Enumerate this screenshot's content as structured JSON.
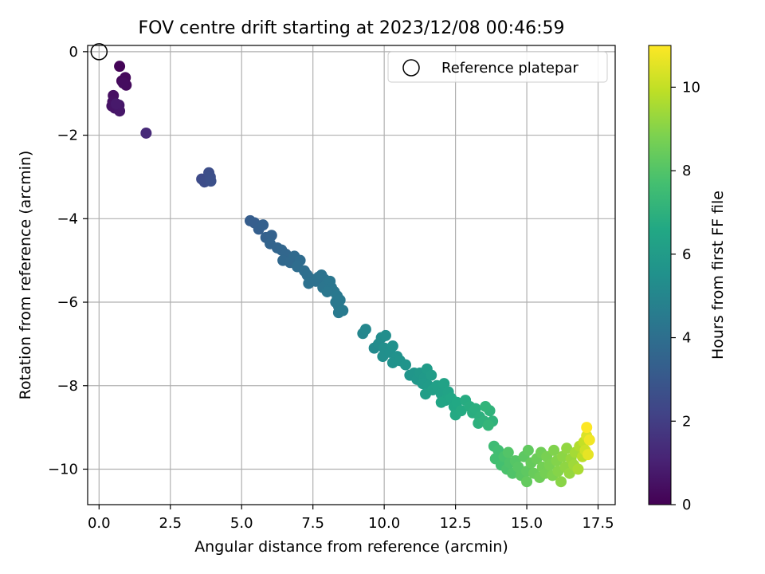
{
  "chart_data": {
    "type": "scatter",
    "title": "FOV centre drift starting at 2023/12/08 00:46:59",
    "xlabel": "Angular distance from reference (arcmin)",
    "ylabel": "Rotation from reference (arcmin)",
    "xlim": [
      -0.4,
      18.1
    ],
    "ylim": [
      -10.85,
      0.15
    ],
    "xticks": [
      0.0,
      2.5,
      5.0,
      7.5,
      10.0,
      12.5,
      15.0,
      17.5
    ],
    "xtick_labels": [
      "0.0",
      "2.5",
      "5.0",
      "7.5",
      "10.0",
      "12.5",
      "15.0",
      "17.5"
    ],
    "yticks": [
      0,
      -2,
      -4,
      -6,
      -8,
      -10
    ],
    "ytick_labels": [
      "0",
      "−2",
      "−4",
      "−6",
      "−8",
      "−10"
    ],
    "grid": true,
    "legend": {
      "position": "top-right",
      "entries": [
        "Reference platepar"
      ]
    },
    "reference_point": {
      "x": 0.0,
      "y": 0.0
    },
    "colorbar": {
      "label": "Hours from first FF file",
      "range": [
        0,
        11
      ],
      "ticks": [
        0,
        2,
        4,
        6,
        8,
        10
      ],
      "colormap": [
        "#440154",
        "#482475",
        "#414487",
        "#355f8d",
        "#2a788e",
        "#21918c",
        "#22a884",
        "#44bf70",
        "#7ad151",
        "#bddf26",
        "#fde725"
      ]
    },
    "points": [
      {
        "x": 0.72,
        "y": -0.35,
        "c": 0.1
      },
      {
        "x": 0.8,
        "y": -0.7,
        "c": 0.2
      },
      {
        "x": 0.92,
        "y": -0.62,
        "c": 0.25
      },
      {
        "x": 0.95,
        "y": -0.8,
        "c": 0.3
      },
      {
        "x": 0.85,
        "y": -0.75,
        "c": 0.35
      },
      {
        "x": 0.5,
        "y": -1.05,
        "c": 0.45
      },
      {
        "x": 0.48,
        "y": -1.2,
        "c": 0.5
      },
      {
        "x": 0.45,
        "y": -1.3,
        "c": 0.55
      },
      {
        "x": 0.55,
        "y": -1.35,
        "c": 0.6
      },
      {
        "x": 0.7,
        "y": -1.28,
        "c": 0.65
      },
      {
        "x": 0.72,
        "y": -1.42,
        "c": 0.7
      },
      {
        "x": 0.6,
        "y": -1.25,
        "c": 0.75
      },
      {
        "x": 1.65,
        "y": -1.95,
        "c": 1.3
      },
      {
        "x": 3.6,
        "y": -3.05,
        "c": 2.5
      },
      {
        "x": 3.7,
        "y": -3.12,
        "c": 2.55
      },
      {
        "x": 3.85,
        "y": -2.9,
        "c": 2.6
      },
      {
        "x": 3.9,
        "y": -3.0,
        "c": 2.65
      },
      {
        "x": 3.92,
        "y": -3.1,
        "c": 2.7
      },
      {
        "x": 5.3,
        "y": -4.05,
        "c": 3.2
      },
      {
        "x": 5.45,
        "y": -4.1,
        "c": 3.25
      },
      {
        "x": 5.6,
        "y": -4.25,
        "c": 3.3
      },
      {
        "x": 5.75,
        "y": -4.15,
        "c": 3.35
      },
      {
        "x": 5.85,
        "y": -4.45,
        "c": 3.4
      },
      {
        "x": 6.05,
        "y": -4.4,
        "c": 3.45
      },
      {
        "x": 6.0,
        "y": -4.6,
        "c": 3.5
      },
      {
        "x": 6.25,
        "y": -4.7,
        "c": 3.55
      },
      {
        "x": 6.4,
        "y": -4.75,
        "c": 3.6
      },
      {
        "x": 6.55,
        "y": -4.85,
        "c": 3.65
      },
      {
        "x": 6.45,
        "y": -5.0,
        "c": 3.7
      },
      {
        "x": 6.7,
        "y": -5.05,
        "c": 3.75
      },
      {
        "x": 6.85,
        "y": -4.9,
        "c": 3.8
      },
      {
        "x": 7.05,
        "y": -5.0,
        "c": 3.85
      },
      {
        "x": 6.95,
        "y": -5.15,
        "c": 3.9
      },
      {
        "x": 7.2,
        "y": -5.25,
        "c": 3.95
      },
      {
        "x": 7.3,
        "y": -5.35,
        "c": 4.0
      },
      {
        "x": 7.45,
        "y": -5.45,
        "c": 4.05
      },
      {
        "x": 7.35,
        "y": -5.55,
        "c": 4.1
      },
      {
        "x": 7.6,
        "y": -5.5,
        "c": 4.1
      },
      {
        "x": 7.7,
        "y": -5.4,
        "c": 4.15
      },
      {
        "x": 7.8,
        "y": -5.35,
        "c": 4.2
      },
      {
        "x": 7.9,
        "y": -5.45,
        "c": 4.2
      },
      {
        "x": 8.0,
        "y": -5.55,
        "c": 4.25
      },
      {
        "x": 7.85,
        "y": -5.65,
        "c": 4.25
      },
      {
        "x": 8.1,
        "y": -5.5,
        "c": 4.3
      },
      {
        "x": 8.15,
        "y": -5.65,
        "c": 4.3
      },
      {
        "x": 8.25,
        "y": -5.75,
        "c": 4.35
      },
      {
        "x": 8.0,
        "y": -5.75,
        "c": 4.35
      },
      {
        "x": 8.35,
        "y": -5.85,
        "c": 4.4
      },
      {
        "x": 8.3,
        "y": -6.0,
        "c": 4.4
      },
      {
        "x": 8.4,
        "y": -6.1,
        "c": 4.45
      },
      {
        "x": 8.45,
        "y": -5.95,
        "c": 4.45
      },
      {
        "x": 8.55,
        "y": -6.2,
        "c": 4.5
      },
      {
        "x": 8.4,
        "y": -6.25,
        "c": 4.5
      },
      {
        "x": 9.25,
        "y": -6.75,
        "c": 5.0
      },
      {
        "x": 9.35,
        "y": -6.65,
        "c": 5.05
      },
      {
        "x": 9.65,
        "y": -7.1,
        "c": 5.2
      },
      {
        "x": 9.8,
        "y": -7.0,
        "c": 5.25
      },
      {
        "x": 9.9,
        "y": -6.85,
        "c": 5.3
      },
      {
        "x": 10.05,
        "y": -6.8,
        "c": 5.35
      },
      {
        "x": 10.0,
        "y": -7.1,
        "c": 5.4
      },
      {
        "x": 9.95,
        "y": -7.3,
        "c": 5.4
      },
      {
        "x": 10.2,
        "y": -7.2,
        "c": 5.45
      },
      {
        "x": 10.3,
        "y": -7.05,
        "c": 5.5
      },
      {
        "x": 10.45,
        "y": -7.3,
        "c": 5.55
      },
      {
        "x": 10.3,
        "y": -7.45,
        "c": 5.55
      },
      {
        "x": 10.55,
        "y": -7.4,
        "c": 5.6
      },
      {
        "x": 10.75,
        "y": -7.5,
        "c": 5.65
      },
      {
        "x": 10.9,
        "y": -7.75,
        "c": 5.7
      },
      {
        "x": 11.05,
        "y": -7.7,
        "c": 5.75
      },
      {
        "x": 11.15,
        "y": -7.85,
        "c": 5.8
      },
      {
        "x": 11.25,
        "y": -7.7,
        "c": 5.85
      },
      {
        "x": 11.4,
        "y": -7.8,
        "c": 5.9
      },
      {
        "x": 11.35,
        "y": -7.95,
        "c": 5.95
      },
      {
        "x": 11.5,
        "y": -7.6,
        "c": 6.0
      },
      {
        "x": 11.55,
        "y": -8.0,
        "c": 6.0
      },
      {
        "x": 11.65,
        "y": -7.75,
        "c": 6.05
      },
      {
        "x": 11.45,
        "y": -8.2,
        "c": 6.1
      },
      {
        "x": 11.7,
        "y": -8.1,
        "c": 6.15
      },
      {
        "x": 11.85,
        "y": -8.0,
        "c": 6.2
      },
      {
        "x": 12.0,
        "y": -8.2,
        "c": 6.25
      },
      {
        "x": 12.1,
        "y": -7.95,
        "c": 6.3
      },
      {
        "x": 12.25,
        "y": -8.15,
        "c": 6.35
      },
      {
        "x": 12.15,
        "y": -8.35,
        "c": 6.4
      },
      {
        "x": 12.0,
        "y": -8.4,
        "c": 6.45
      },
      {
        "x": 12.35,
        "y": -8.3,
        "c": 6.5
      },
      {
        "x": 12.45,
        "y": -8.5,
        "c": 6.55
      },
      {
        "x": 12.55,
        "y": -8.4,
        "c": 6.6
      },
      {
        "x": 12.5,
        "y": -8.7,
        "c": 6.65
      },
      {
        "x": 12.7,
        "y": -8.6,
        "c": 6.7
      },
      {
        "x": 12.85,
        "y": -8.35,
        "c": 6.75
      },
      {
        "x": 13.0,
        "y": -8.5,
        "c": 6.8
      },
      {
        "x": 13.1,
        "y": -8.65,
        "c": 6.85
      },
      {
        "x": 13.2,
        "y": -8.55,
        "c": 6.9
      },
      {
        "x": 13.35,
        "y": -8.75,
        "c": 6.95
      },
      {
        "x": 13.3,
        "y": -8.9,
        "c": 7.0
      },
      {
        "x": 13.5,
        "y": -8.85,
        "c": 7.05
      },
      {
        "x": 13.7,
        "y": -8.6,
        "c": 7.1
      },
      {
        "x": 13.8,
        "y": -8.85,
        "c": 7.1
      },
      {
        "x": 13.55,
        "y": -8.5,
        "c": 7.15
      },
      {
        "x": 13.65,
        "y": -8.95,
        "c": 7.2
      },
      {
        "x": 13.85,
        "y": -9.45,
        "c": 7.5
      },
      {
        "x": 14.0,
        "y": -9.55,
        "c": 7.6
      },
      {
        "x": 13.9,
        "y": -9.75,
        "c": 7.65
      },
      {
        "x": 14.1,
        "y": -9.9,
        "c": 7.7
      },
      {
        "x": 14.2,
        "y": -9.7,
        "c": 7.8
      },
      {
        "x": 14.3,
        "y": -10.0,
        "c": 7.85
      },
      {
        "x": 14.4,
        "y": -9.85,
        "c": 7.9
      },
      {
        "x": 14.5,
        "y": -10.1,
        "c": 7.95
      },
      {
        "x": 14.35,
        "y": -9.6,
        "c": 8.0
      },
      {
        "x": 14.6,
        "y": -9.8,
        "c": 8.05
      },
      {
        "x": 14.7,
        "y": -9.95,
        "c": 8.1
      },
      {
        "x": 14.8,
        "y": -10.15,
        "c": 8.15
      },
      {
        "x": 14.9,
        "y": -9.7,
        "c": 8.2
      },
      {
        "x": 15.0,
        "y": -10.05,
        "c": 8.25
      },
      {
        "x": 15.05,
        "y": -9.55,
        "c": 8.3
      },
      {
        "x": 15.0,
        "y": -10.3,
        "c": 8.35
      },
      {
        "x": 15.15,
        "y": -9.85,
        "c": 8.4
      },
      {
        "x": 15.25,
        "y": -10.1,
        "c": 8.45
      },
      {
        "x": 15.35,
        "y": -9.75,
        "c": 8.5
      },
      {
        "x": 15.45,
        "y": -10.2,
        "c": 8.55
      },
      {
        "x": 15.5,
        "y": -9.6,
        "c": 8.6
      },
      {
        "x": 15.55,
        "y": -9.95,
        "c": 8.65
      },
      {
        "x": 15.65,
        "y": -10.1,
        "c": 8.7
      },
      {
        "x": 15.7,
        "y": -9.7,
        "c": 8.75
      },
      {
        "x": 15.8,
        "y": -9.9,
        "c": 8.8
      },
      {
        "x": 15.9,
        "y": -10.15,
        "c": 8.85
      },
      {
        "x": 15.95,
        "y": -9.55,
        "c": 8.9
      },
      {
        "x": 16.05,
        "y": -9.8,
        "c": 8.95
      },
      {
        "x": 16.1,
        "y": -10.05,
        "c": 9.0
      },
      {
        "x": 16.2,
        "y": -10.3,
        "c": 9.05
      },
      {
        "x": 16.25,
        "y": -9.7,
        "c": 9.1
      },
      {
        "x": 16.35,
        "y": -9.95,
        "c": 9.15
      },
      {
        "x": 16.4,
        "y": -9.5,
        "c": 9.2
      },
      {
        "x": 16.5,
        "y": -10.1,
        "c": 9.25
      },
      {
        "x": 16.55,
        "y": -9.75,
        "c": 9.3
      },
      {
        "x": 16.65,
        "y": -9.9,
        "c": 9.4
      },
      {
        "x": 16.7,
        "y": -9.6,
        "c": 9.5
      },
      {
        "x": 16.8,
        "y": -10.0,
        "c": 9.6
      },
      {
        "x": 16.85,
        "y": -9.45,
        "c": 9.7
      },
      {
        "x": 16.95,
        "y": -9.7,
        "c": 9.85
      },
      {
        "x": 17.0,
        "y": -9.35,
        "c": 10.0
      },
      {
        "x": 17.05,
        "y": -9.55,
        "c": 10.2
      },
      {
        "x": 17.1,
        "y": -9.2,
        "c": 10.4
      },
      {
        "x": 17.15,
        "y": -9.65,
        "c": 10.6
      },
      {
        "x": 17.2,
        "y": -9.3,
        "c": 10.8
      },
      {
        "x": 17.1,
        "y": -9.0,
        "c": 11.0
      }
    ]
  }
}
